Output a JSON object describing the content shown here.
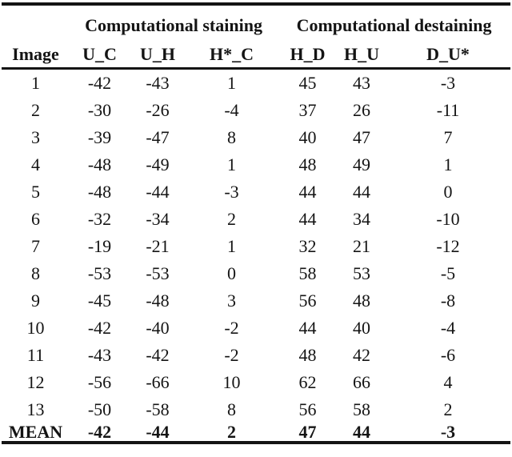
{
  "table": {
    "group_headers": {
      "staining": "Computational staining",
      "destaining": "Computational destaining"
    },
    "columns": [
      "Image",
      "U_C",
      "U_H",
      "H*_C",
      "H_D",
      "H_U",
      "D_U*"
    ],
    "rows": [
      {
        "image": "1",
        "values": [
          "-42",
          "-43",
          "1",
          "45",
          "43",
          "-3"
        ]
      },
      {
        "image": "2",
        "values": [
          "-30",
          "-26",
          "-4",
          "37",
          "26",
          "-11"
        ]
      },
      {
        "image": "3",
        "values": [
          "-39",
          "-47",
          "8",
          "40",
          "47",
          "7"
        ]
      },
      {
        "image": "4",
        "values": [
          "-48",
          "-49",
          "1",
          "48",
          "49",
          "1"
        ]
      },
      {
        "image": "5",
        "values": [
          "-48",
          "-44",
          "-3",
          "44",
          "44",
          "0"
        ]
      },
      {
        "image": "6",
        "values": [
          "-32",
          "-34",
          "2",
          "44",
          "34",
          "-10"
        ]
      },
      {
        "image": "7",
        "values": [
          "-19",
          "-21",
          "1",
          "32",
          "21",
          "-12"
        ]
      },
      {
        "image": "8",
        "values": [
          "-53",
          "-53",
          "0",
          "58",
          "53",
          "-5"
        ]
      },
      {
        "image": "9",
        "values": [
          "-45",
          "-48",
          "3",
          "56",
          "48",
          "-8"
        ]
      },
      {
        "image": "10",
        "values": [
          "-42",
          "-40",
          "-2",
          "44",
          "40",
          "-4"
        ]
      },
      {
        "image": "11",
        "values": [
          "-43",
          "-42",
          "-2",
          "48",
          "42",
          "-6"
        ]
      },
      {
        "image": "12",
        "values": [
          "-56",
          "-66",
          "10",
          "62",
          "66",
          "4"
        ]
      },
      {
        "image": "13",
        "values": [
          "-50",
          "-58",
          "8",
          "56",
          "58",
          "2"
        ]
      }
    ],
    "mean": {
      "label": "MEAN",
      "values": [
        "-42",
        "-44",
        "2",
        "47",
        "44",
        "-3"
      ]
    },
    "text_color": "#141414",
    "background_color": "#ffffff"
  }
}
